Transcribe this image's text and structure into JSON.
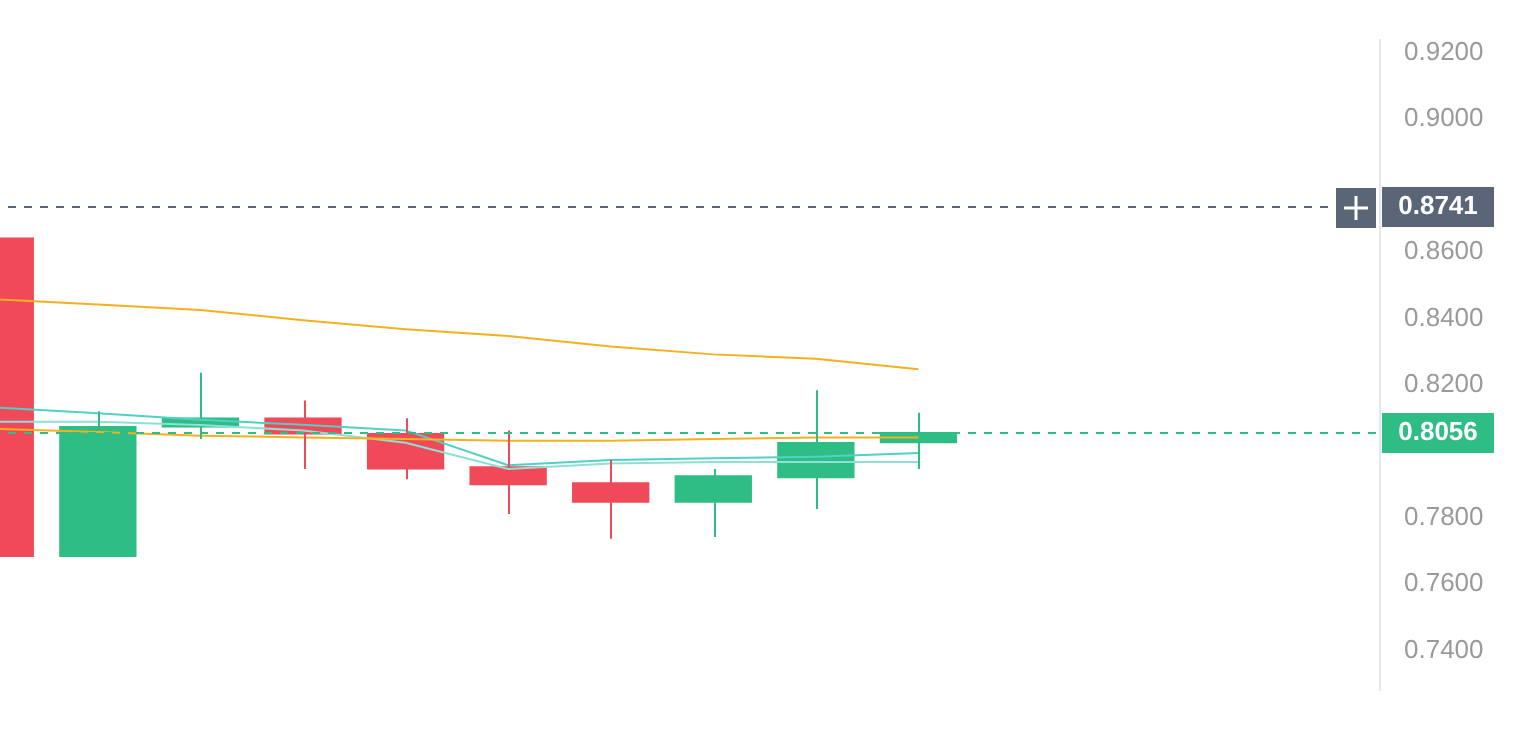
{
  "chart_data": {
    "type": "candlestick",
    "categories": [
      null,
      null,
      null,
      null,
      null,
      null,
      null,
      null,
      null,
      null,
      null,
      null,
      null,
      null
    ],
    "ohlc": [
      [
        0.8642,
        0.8642,
        0.7684,
        0.7684
      ],
      [
        0.7684,
        0.8121,
        0.7684,
        0.8074
      ],
      [
        0.8074,
        0.8237,
        0.8037,
        0.81
      ],
      [
        0.81,
        0.8153,
        0.7947,
        0.8053
      ],
      [
        0.8053,
        0.81,
        0.7916,
        0.7947
      ],
      [
        0.7953,
        0.8063,
        0.7811,
        0.79
      ],
      [
        0.7905,
        0.7974,
        0.7737,
        0.7847
      ],
      [
        0.7847,
        0.7947,
        0.7742,
        0.7926
      ],
      [
        0.7921,
        0.8184,
        0.7826,
        0.8026
      ],
      [
        0.8026,
        0.8116,
        0.7947,
        0.8056
      ],
      null,
      null,
      null,
      null
    ],
    "colors": [
      "#f0495a",
      "#2ebd85",
      "#2ebd85",
      "#f0495a",
      "#f0495a",
      "#f0495a",
      "#f0495a",
      "#2ebd85",
      "#2ebd85",
      "#2ebd85",
      null,
      null,
      null,
      null
    ],
    "series": [
      {
        "type": "line",
        "color": "#f5b01f",
        "values": [
          0.8458,
          0.8442,
          0.8426,
          0.8395,
          0.8368,
          0.8347,
          0.8316,
          0.8292,
          0.8279,
          0.8247,
          null,
          null,
          null,
          null
        ]
      },
      {
        "type": "line",
        "color": "#f5b01f",
        "values": [
          0.8068,
          0.8058,
          0.8047,
          0.8042,
          0.8037,
          0.8032,
          0.8032,
          0.8037,
          0.8042,
          0.8042,
          null,
          null,
          null,
          null
        ]
      },
      {
        "type": "line",
        "color": "#4fd1c5",
        "values": [
          0.8132,
          0.8115,
          0.8095,
          0.808,
          0.8063,
          0.7958,
          0.7974,
          0.7979,
          0.7984,
          0.7995,
          null,
          null,
          null,
          null
        ]
      },
      {
        "type": "line",
        "color": "#8fe0d4",
        "values": [
          0.8089,
          0.8089,
          0.8079,
          0.8063,
          0.8026,
          0.7947,
          0.7963,
          0.7968,
          0.7968,
          0.7968,
          null,
          null,
          null,
          null
        ]
      }
    ],
    "ylim": [
      0.728,
      0.924
    ],
    "yticks": [
      {
        "value": 0.74,
        "label": "0.7400"
      },
      {
        "value": 0.76,
        "label": "0.7600"
      },
      {
        "value": 0.78,
        "label": "0.7800"
      },
      {
        "value": 0.82,
        "label": "0.8200"
      },
      {
        "value": 0.84,
        "label": "0.8400"
      },
      {
        "value": 0.86,
        "label": "0.8600"
      },
      {
        "value": 0.9,
        "label": "0.9000"
      },
      {
        "value": 0.92,
        "label": "0.9200"
      }
    ],
    "ref_lines": [
      {
        "axis": "y",
        "value": 0.8741,
        "label": "0.8741",
        "color": "#5b6578",
        "line_style": "dashed"
      },
      {
        "axis": "y",
        "value": 0.8056,
        "label": "0.8056",
        "color": "#2ebd85",
        "line_style": "dashed"
      }
    ],
    "tick_labels": "y",
    "grid": false,
    "legend": false
  }
}
